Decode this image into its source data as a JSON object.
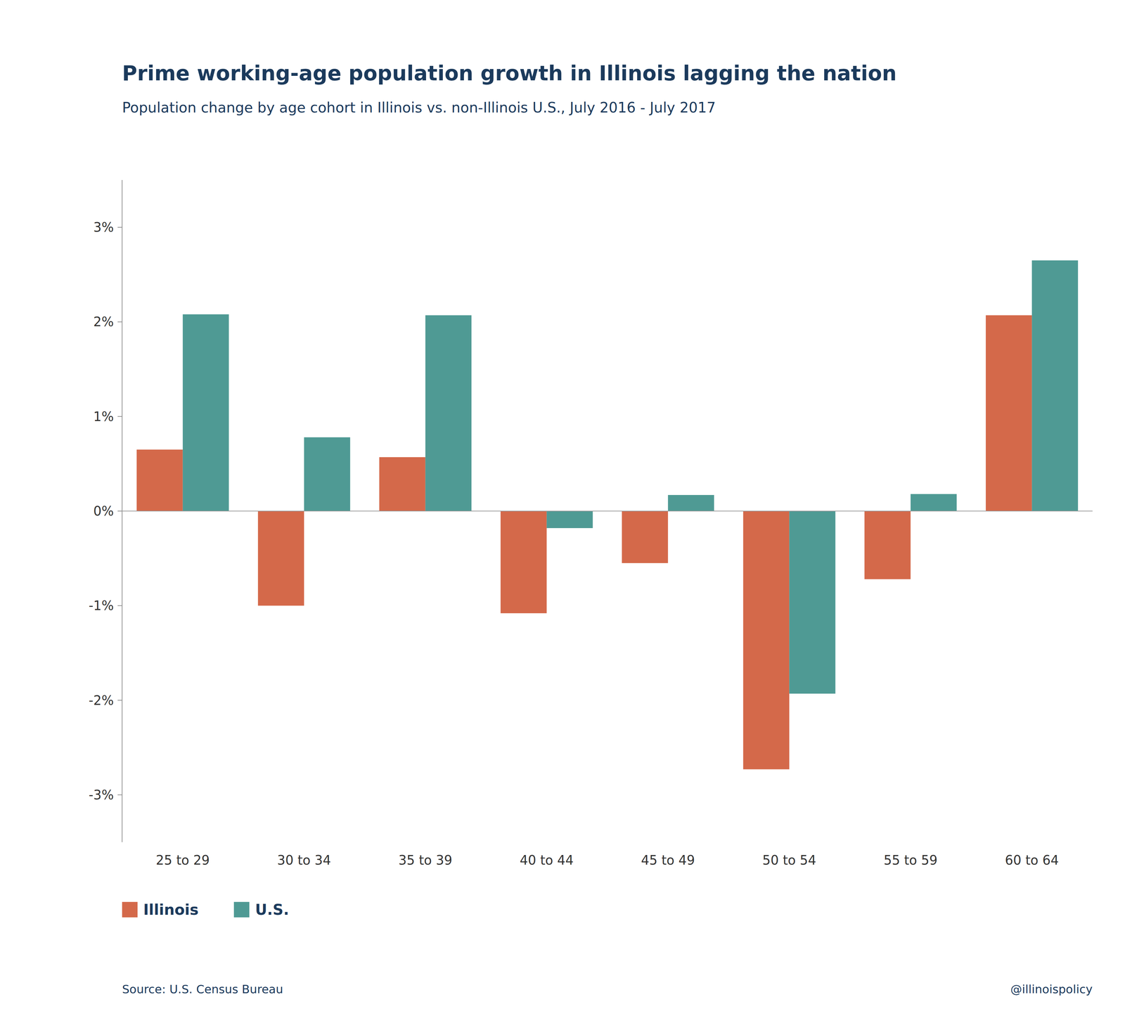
{
  "chart_data": {
    "type": "bar",
    "title": "Prime working-age population growth in Illinois lagging the nation",
    "subtitle": "Population change by age cohort in Illinois vs. non-Illinois U.S., July 2016 - July 2017",
    "categories": [
      "25 to 29",
      "30 to 34",
      "35 to 39",
      "40 to 44",
      "45 to 49",
      "50 to 54",
      "55 to 59",
      "60 to 64"
    ],
    "series": [
      {
        "name": "Illinois",
        "color": "#D4694A",
        "values": [
          0.65,
          -1.0,
          0.57,
          -1.08,
          -0.55,
          -2.73,
          -0.72,
          2.07
        ]
      },
      {
        "name": "U.S.",
        "color": "#4F9A94",
        "values": [
          2.08,
          0.78,
          2.07,
          -0.18,
          0.17,
          -1.93,
          0.18,
          2.65
        ]
      }
    ],
    "ylim": [
      -3.5,
      3.5
    ],
    "yticks": [
      {
        "value": -3,
        "label": "-3%"
      },
      {
        "value": -2,
        "label": "-2%"
      },
      {
        "value": -1,
        "label": "-1%"
      },
      {
        "value": 0,
        "label": "0%"
      },
      {
        "value": 1,
        "label": "1%"
      },
      {
        "value": 2,
        "label": "2%"
      },
      {
        "value": 3,
        "label": "3%"
      }
    ],
    "grid": false,
    "legend": "lower left",
    "annotations": [
      "Source: U.S. Census Bureau",
      "@illinoispolicy"
    ]
  }
}
